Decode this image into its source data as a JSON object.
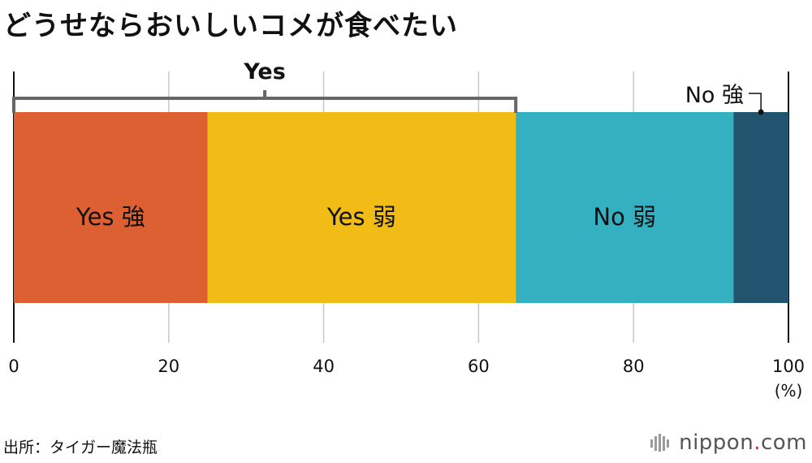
{
  "title": "どうせならおいしいコメが食べたい",
  "source": "出所：タイガー魔法瓶",
  "logo": {
    "name": "nippon",
    "dot": ".",
    "tld": "com"
  },
  "chart_data": {
    "type": "bar",
    "orientation": "horizontal-stacked",
    "title": "どうせならおいしいコメが食べたい",
    "xlim": [
      0,
      100
    ],
    "x_ticks": [
      "0",
      "20",
      "40",
      "60",
      "80",
      "100"
    ],
    "unit_label": "(%)",
    "grid": true,
    "segments": [
      {
        "label": "Yes 強",
        "value": 25,
        "color": "#dd6033",
        "label_inside": true
      },
      {
        "label": "Yes 弱",
        "value": 39.8,
        "color": "#f2bc17",
        "label_inside": true
      },
      {
        "label": "No 弱",
        "value": 28.1,
        "color": "#34b0c1",
        "label_inside": true
      },
      {
        "label": "No 強",
        "value": 7.1,
        "color": "#22546f",
        "label_inside": false
      }
    ],
    "bracket": {
      "label": "Yes",
      "from": 0,
      "to": 64.8
    },
    "axis_color": "#111111",
    "grid_color": "#c8c8c8",
    "bracket_color": "#666666"
  }
}
